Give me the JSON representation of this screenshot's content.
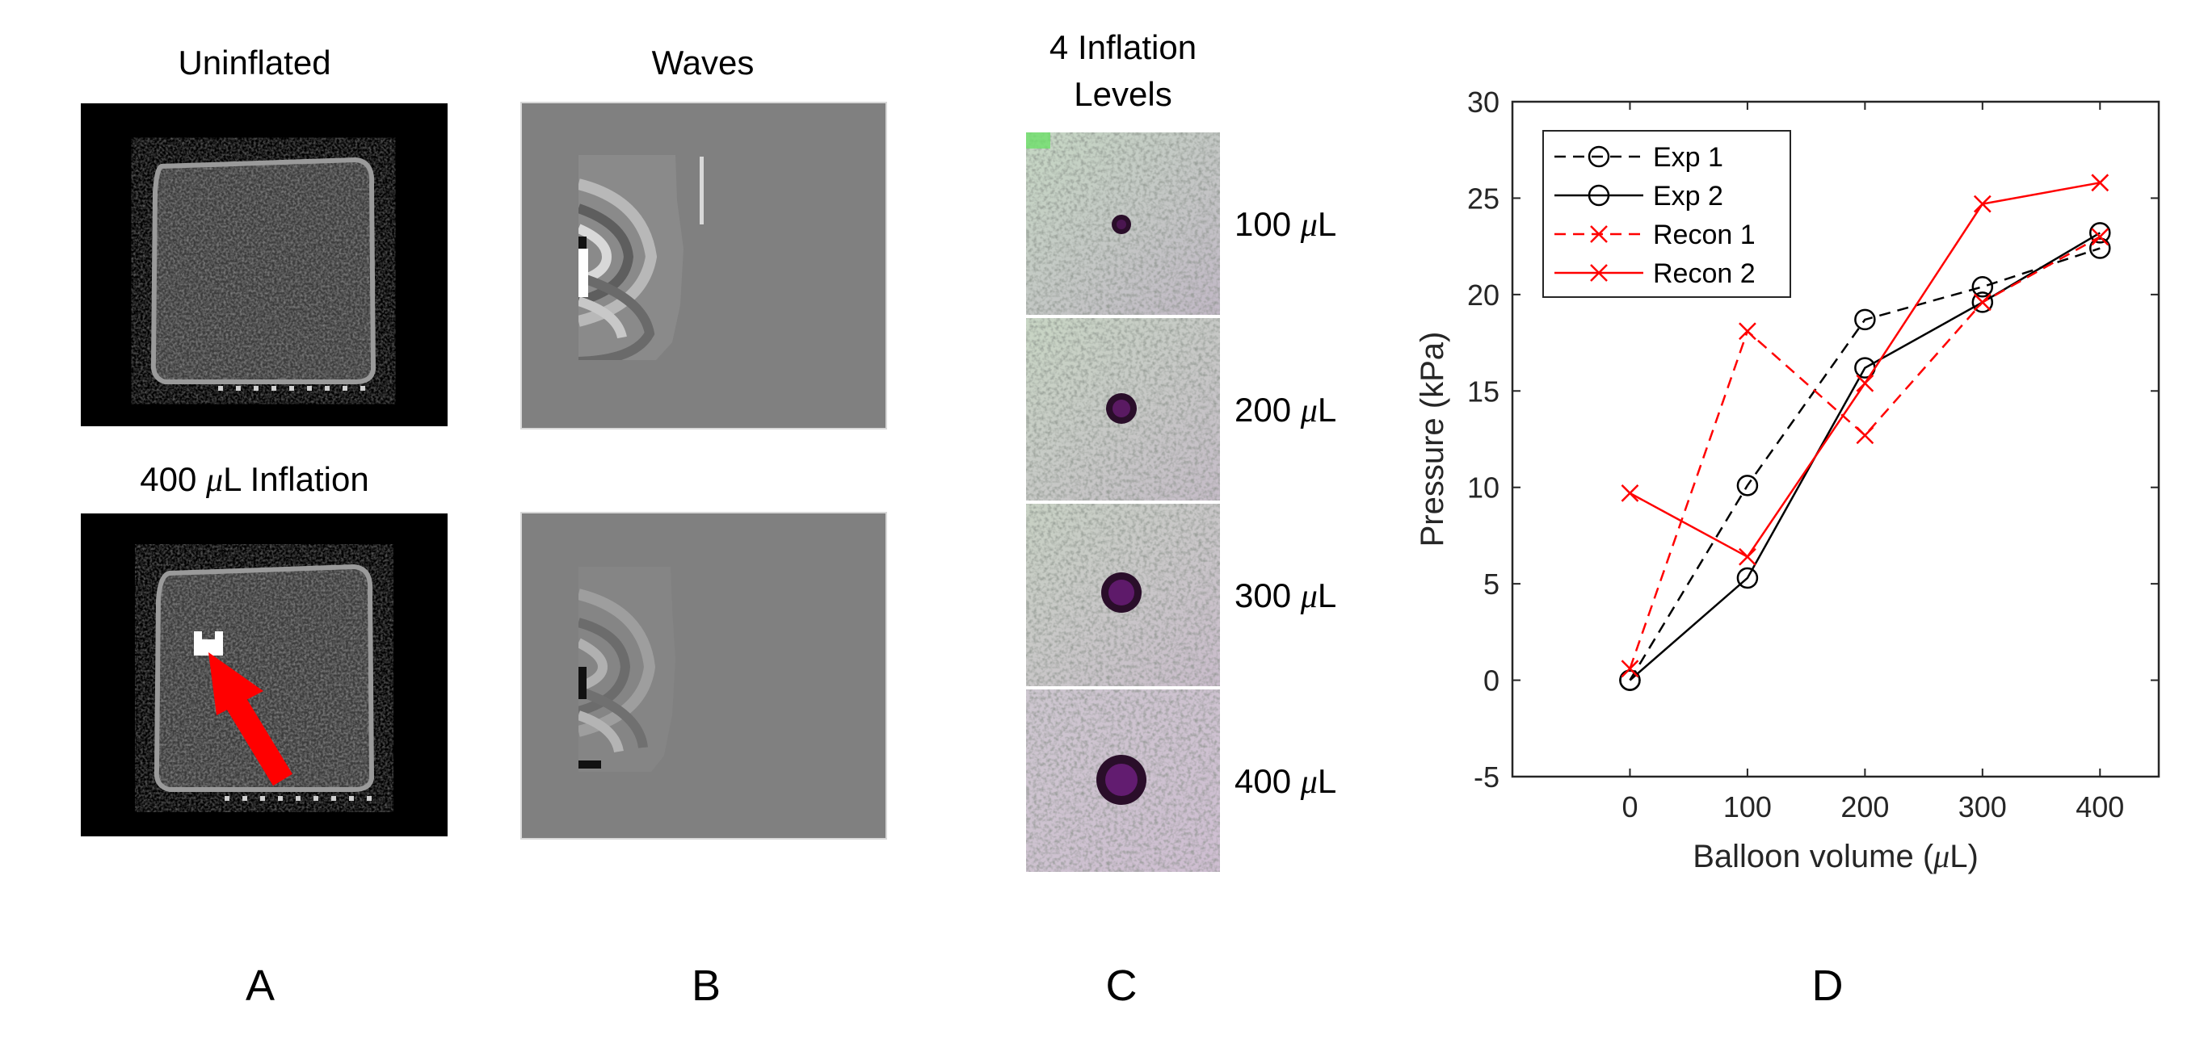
{
  "panels": {
    "a": {
      "letter": "A",
      "top_title": "Uninflated",
      "bottom_title_prefix": "400 ",
      "bottom_title_mu": "μ",
      "bottom_title_suffix": "L Inflation"
    },
    "b": {
      "letter": "B",
      "title": "Waves"
    },
    "c": {
      "letter": "C",
      "title_line1": "4 Inflation",
      "title_line2": "Levels",
      "levels": [
        {
          "value": "100 ",
          "mu": "μ",
          "unit": "L"
        },
        {
          "value": "200 ",
          "mu": "μ",
          "unit": "L"
        },
        {
          "value": "300 ",
          "mu": "μ",
          "unit": "L"
        },
        {
          "value": "400 ",
          "mu": "μ",
          "unit": "L"
        }
      ]
    },
    "d": {
      "letter": "D"
    }
  },
  "colors": {
    "red": "#ff0000",
    "black": "#000000",
    "arrow": "#ff0000"
  },
  "chart_data": {
    "type": "line",
    "title": "",
    "xlabel_prefix": "Balloon volume (",
    "xlabel_mu": "μ",
    "xlabel_suffix": "L)",
    "ylabel": "Pressure (kPa)",
    "x": [
      0,
      100,
      200,
      300,
      400
    ],
    "xlim": [
      -100,
      450
    ],
    "ylim": [
      -5,
      30
    ],
    "xticks": [
      "0",
      "100",
      "200",
      "300",
      "400"
    ],
    "yticks": [
      "-5",
      "0",
      "5",
      "10",
      "15",
      "20",
      "25",
      "30"
    ],
    "ytick_values": [
      -5,
      0,
      5,
      10,
      15,
      20,
      25,
      30
    ],
    "legend_position": "top-left",
    "series": [
      {
        "name": "Exp 1",
        "values": [
          0,
          10.1,
          18.7,
          20.4,
          22.4
        ],
        "color": "#000000",
        "dash": "dashed",
        "marker": "circle"
      },
      {
        "name": "Exp 2",
        "values": [
          0,
          5.3,
          16.2,
          19.6,
          23.2
        ],
        "color": "#000000",
        "dash": "solid",
        "marker": "circle"
      },
      {
        "name": "Recon 1",
        "values": [
          0.6,
          18.1,
          12.7,
          19.6,
          23.0
        ],
        "color": "#ff0000",
        "dash": "dashed",
        "marker": "x"
      },
      {
        "name": "Recon 2",
        "values": [
          9.7,
          6.4,
          15.4,
          24.7,
          25.8
        ],
        "color": "#ff0000",
        "dash": "solid",
        "marker": "x"
      }
    ]
  }
}
